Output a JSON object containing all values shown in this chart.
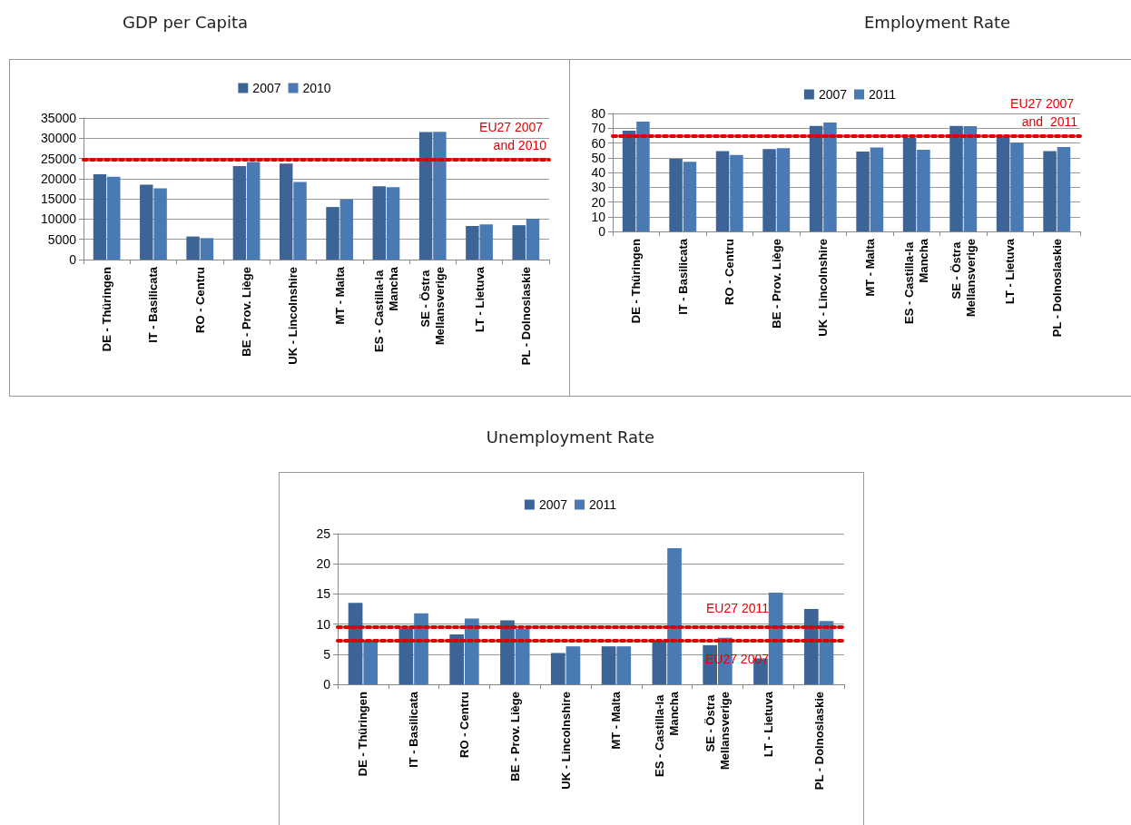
{
  "chart_data": [
    {
      "type": "bar",
      "title": "GDP per Capita",
      "categories": [
        "DE - Thüringen",
        "IT - Basilicata",
        "RO - Centru",
        "BE - Prov. Liège",
        "UK - Lincolnshire",
        "MT - Malta",
        "ES - Castilla-la Mancha",
        "SE - Östra Mellansverige",
        "LT - Lietuva",
        "PL - Dolnoslaskie"
      ],
      "series": [
        {
          "name": "2007",
          "color": "#3c6496",
          "values": [
            21100,
            18500,
            5700,
            23100,
            23700,
            13000,
            18100,
            31500,
            8300,
            8500
          ]
        },
        {
          "name": "2010",
          "color": "#4a7ab4",
          "values": [
            20500,
            17600,
            5300,
            24100,
            19200,
            14900,
            17900,
            31600,
            8700,
            10100
          ]
        }
      ],
      "ylim": [
        0,
        35000
      ],
      "yticks": [
        0,
        5000,
        10000,
        15000,
        20000,
        25000,
        30000,
        35000
      ],
      "grid": "y",
      "legend": "top",
      "ref_lines": [
        {
          "axis": "y",
          "value": 24700,
          "label": "EU27 2007 and 2010",
          "color": "#e00000",
          "line_style": "dotted"
        }
      ]
    },
    {
      "type": "bar",
      "title": "Employment Rate",
      "categories": [
        "DE - Thüringen",
        "IT - Basilicata",
        "RO - Centru",
        "BE - Prov. Liège",
        "UK - Lincolnshire",
        "MT - Malta",
        "ES - Castilla-la Mancha",
        "SE - Östra Mellansverige",
        "LT - Lietuva",
        "PL - Dolnoslaskie"
      ],
      "series": [
        {
          "name": "2007",
          "color": "#3c6496",
          "values": [
            68.3,
            49.2,
            54.5,
            55.9,
            71.6,
            54.1,
            63.6,
            71.6,
            64.3,
            54.5
          ]
        },
        {
          "name": "2011",
          "color": "#4a7ab4",
          "values": [
            74.5,
            47.2,
            51.9,
            56.5,
            73.8,
            57.0,
            55.4,
            71.4,
            60.3,
            57.2
          ]
        }
      ],
      "ylim": [
        0,
        80
      ],
      "yticks": [
        0,
        10,
        20,
        30,
        40,
        50,
        60,
        70,
        80
      ],
      "grid": "y",
      "legend": "top",
      "ref_lines": [
        {
          "axis": "y",
          "value": 64.7,
          "label": "EU27 2007 and  2011",
          "color": "#e00000",
          "line_style": "dotted"
        }
      ]
    },
    {
      "type": "bar",
      "title": "Unemployment Rate",
      "categories": [
        "DE - Thüringen",
        "IT - Basilicata",
        "RO - Centru",
        "BE - Prov. Liège",
        "UK - Lincolnshire",
        "MT - Malta",
        "ES - Castilla-la Mancha",
        "SE - Östra Mellansverige",
        "LT - Lietuva",
        "PL - Dolnoslaskie"
      ],
      "series": [
        {
          "name": "2007",
          "color": "#3c6496",
          "values": [
            13.5,
            9.3,
            8.3,
            10.6,
            5.2,
            6.3,
            7.3,
            6.5,
            4.3,
            12.5
          ]
        },
        {
          "name": "2011",
          "color": "#4a7ab4",
          "values": [
            7.3,
            11.8,
            10.9,
            9.2,
            6.3,
            6.3,
            22.6,
            7.7,
            15.2,
            10.5
          ]
        }
      ],
      "ylim": [
        0,
        25
      ],
      "yticks": [
        0,
        5,
        10,
        15,
        20,
        25
      ],
      "grid": "y",
      "legend": "top",
      "ref_lines": [
        {
          "axis": "y",
          "value": 9.6,
          "label": "EU27 2011",
          "color": "#e00000",
          "line_style": "dotted"
        },
        {
          "axis": "y",
          "value": 7.2,
          "label": "EU27 2007",
          "color": "#e00000",
          "line_style": "dotted"
        }
      ]
    }
  ]
}
